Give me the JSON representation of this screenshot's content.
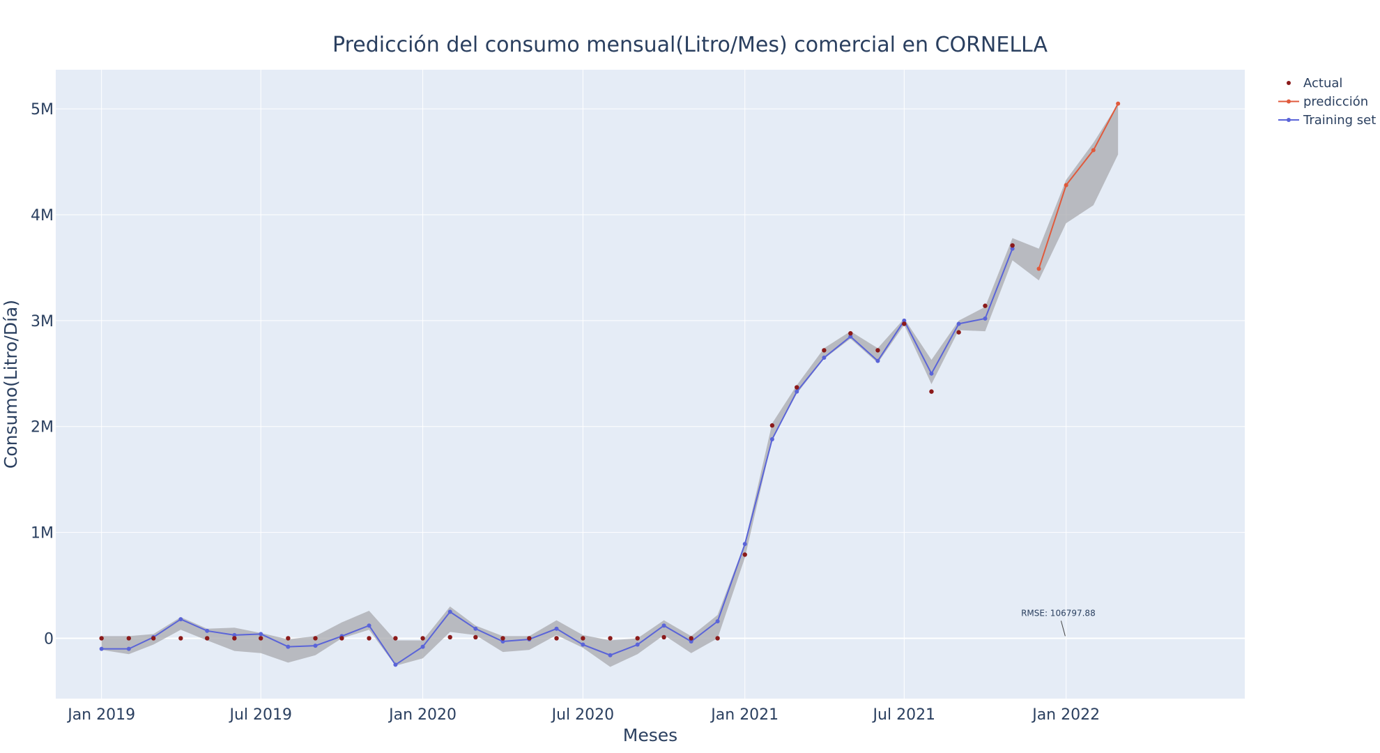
{
  "chart_data": {
    "type": "line",
    "title": "Predicción del consumo mensual(Litro/Mes) comercial en CORNELLA",
    "xlabel": "Meses",
    "ylabel": "Consumo(Litro/Día)",
    "x_ticks": [
      {
        "date": "2019-01-01",
        "label": "Jan 2019"
      },
      {
        "date": "2019-07-01",
        "label": "Jul 2019"
      },
      {
        "date": "2020-01-01",
        "label": "Jan 2020"
      },
      {
        "date": "2020-07-01",
        "label": "Jul 2020"
      },
      {
        "date": "2021-01-01",
        "label": "Jan 2021"
      },
      {
        "date": "2021-07-01",
        "label": "Jul 2021"
      },
      {
        "date": "2022-01-01",
        "label": "Jan 2022"
      }
    ],
    "y_ticks": [
      {
        "value": 0,
        "label": "0"
      },
      {
        "value": 1000000,
        "label": "1M"
      },
      {
        "value": 2000000,
        "label": "2M"
      },
      {
        "value": 3000000,
        "label": "3M"
      },
      {
        "value": 4000000,
        "label": "4M"
      },
      {
        "value": 5000000,
        "label": "5M"
      }
    ],
    "xlim": [
      "2018-11-10",
      "2022-07-23"
    ],
    "ylim": [
      -570000,
      5370000
    ],
    "grid": true,
    "legend_position": "top-right",
    "colors": {
      "plot_bg": "#e5ecf6",
      "grid": "#ffffff",
      "actual": "#8b1a1a",
      "prediction": "#e05a3c",
      "training": "#5a64d8",
      "band": "#a8aaae"
    },
    "series": [
      {
        "name": "Actual",
        "mode": "markers",
        "points": [
          {
            "x": "2019-01-01",
            "y": 0
          },
          {
            "x": "2019-02-01",
            "y": 0
          },
          {
            "x": "2019-03-01",
            "y": 0
          },
          {
            "x": "2019-04-01",
            "y": 0
          },
          {
            "x": "2019-05-01",
            "y": 0
          },
          {
            "x": "2019-06-01",
            "y": 0
          },
          {
            "x": "2019-07-01",
            "y": 0
          },
          {
            "x": "2019-08-01",
            "y": 0
          },
          {
            "x": "2019-09-01",
            "y": 0
          },
          {
            "x": "2019-10-01",
            "y": 0
          },
          {
            "x": "2019-11-01",
            "y": 0
          },
          {
            "x": "2019-12-01",
            "y": 0
          },
          {
            "x": "2020-01-01",
            "y": 0
          },
          {
            "x": "2020-02-01",
            "y": 10000
          },
          {
            "x": "2020-03-01",
            "y": 10000
          },
          {
            "x": "2020-04-01",
            "y": 0
          },
          {
            "x": "2020-05-01",
            "y": 0
          },
          {
            "x": "2020-06-01",
            "y": 0
          },
          {
            "x": "2020-07-01",
            "y": 0
          },
          {
            "x": "2020-08-01",
            "y": 0
          },
          {
            "x": "2020-09-01",
            "y": 0
          },
          {
            "x": "2020-10-01",
            "y": 10000
          },
          {
            "x": "2020-11-01",
            "y": 0
          },
          {
            "x": "2020-12-01",
            "y": 0
          },
          {
            "x": "2021-01-01",
            "y": 790000
          },
          {
            "x": "2021-02-01",
            "y": 2010000
          },
          {
            "x": "2021-03-01",
            "y": 2370000
          },
          {
            "x": "2021-04-01",
            "y": 2720000
          },
          {
            "x": "2021-05-01",
            "y": 2880000
          },
          {
            "x": "2021-06-01",
            "y": 2720000
          },
          {
            "x": "2021-07-01",
            "y": 2970000
          },
          {
            "x": "2021-08-01",
            "y": 2330000
          },
          {
            "x": "2021-09-01",
            "y": 2890000
          },
          {
            "x": "2021-10-01",
            "y": 3140000
          },
          {
            "x": "2021-11-01",
            "y": 3710000
          }
        ]
      },
      {
        "name": "predicción",
        "mode": "lines+markers",
        "points": [
          {
            "x": "2021-12-01",
            "y": 3490000
          },
          {
            "x": "2022-01-01",
            "y": 4280000
          },
          {
            "x": "2022-02-01",
            "y": 4610000
          },
          {
            "x": "2022-03-01",
            "y": 5050000
          }
        ]
      },
      {
        "name": "Training set",
        "mode": "lines+markers",
        "points": [
          {
            "x": "2019-01-01",
            "y": -100000
          },
          {
            "x": "2019-02-01",
            "y": -100000
          },
          {
            "x": "2019-03-01",
            "y": 10000
          },
          {
            "x": "2019-04-01",
            "y": 180000
          },
          {
            "x": "2019-05-01",
            "y": 70000
          },
          {
            "x": "2019-06-01",
            "y": 30000
          },
          {
            "x": "2019-07-01",
            "y": 40000
          },
          {
            "x": "2019-08-01",
            "y": -80000
          },
          {
            "x": "2019-09-01",
            "y": -70000
          },
          {
            "x": "2019-10-01",
            "y": 20000
          },
          {
            "x": "2019-11-01",
            "y": 120000
          },
          {
            "x": "2019-12-01",
            "y": -250000
          },
          {
            "x": "2020-01-01",
            "y": -80000
          },
          {
            "x": "2020-02-01",
            "y": 250000
          },
          {
            "x": "2020-03-01",
            "y": 90000
          },
          {
            "x": "2020-04-01",
            "y": -30000
          },
          {
            "x": "2020-05-01",
            "y": -10000
          },
          {
            "x": "2020-06-01",
            "y": 90000
          },
          {
            "x": "2020-07-01",
            "y": -60000
          },
          {
            "x": "2020-08-01",
            "y": -160000
          },
          {
            "x": "2020-09-01",
            "y": -60000
          },
          {
            "x": "2020-10-01",
            "y": 120000
          },
          {
            "x": "2020-11-01",
            "y": -30000
          },
          {
            "x": "2020-12-01",
            "y": 160000
          },
          {
            "x": "2021-01-01",
            "y": 890000
          },
          {
            "x": "2021-02-01",
            "y": 1880000
          },
          {
            "x": "2021-03-01",
            "y": 2330000
          },
          {
            "x": "2021-04-01",
            "y": 2650000
          },
          {
            "x": "2021-05-01",
            "y": 2850000
          },
          {
            "x": "2021-06-01",
            "y": 2620000
          },
          {
            "x": "2021-07-01",
            "y": 3000000
          },
          {
            "x": "2021-08-01",
            "y": 2500000
          },
          {
            "x": "2021-09-01",
            "y": 2970000
          },
          {
            "x": "2021-10-01",
            "y": 3020000
          },
          {
            "x": "2021-11-01",
            "y": 3680000
          }
        ]
      }
    ],
    "uncertainty_band": [
      {
        "x": "2019-01-01",
        "lower": -110000,
        "upper": 20000
      },
      {
        "x": "2019-02-01",
        "lower": -150000,
        "upper": 20000
      },
      {
        "x": "2019-03-01",
        "lower": -60000,
        "upper": 40000
      },
      {
        "x": "2019-04-01",
        "lower": 80000,
        "upper": 200000
      },
      {
        "x": "2019-05-01",
        "lower": -20000,
        "upper": 90000
      },
      {
        "x": "2019-06-01",
        "lower": -120000,
        "upper": 100000
      },
      {
        "x": "2019-07-01",
        "lower": -140000,
        "upper": 50000
      },
      {
        "x": "2019-08-01",
        "lower": -230000,
        "upper": -10000
      },
      {
        "x": "2019-09-01",
        "lower": -160000,
        "upper": 20000
      },
      {
        "x": "2019-10-01",
        "lower": 0,
        "upper": 150000
      },
      {
        "x": "2019-11-01",
        "lower": 80000,
        "upper": 260000
      },
      {
        "x": "2019-12-01",
        "lower": -260000,
        "upper": -20000
      },
      {
        "x": "2020-01-01",
        "lower": -190000,
        "upper": -20000
      },
      {
        "x": "2020-02-01",
        "lower": 60000,
        "upper": 300000
      },
      {
        "x": "2020-03-01",
        "lower": 30000,
        "upper": 120000
      },
      {
        "x": "2020-04-01",
        "lower": -130000,
        "upper": 20000
      },
      {
        "x": "2020-05-01",
        "lower": -110000,
        "upper": 20000
      },
      {
        "x": "2020-06-01",
        "lower": 30000,
        "upper": 170000
      },
      {
        "x": "2020-07-01",
        "lower": -90000,
        "upper": 30000
      },
      {
        "x": "2020-08-01",
        "lower": -270000,
        "upper": -20000
      },
      {
        "x": "2020-09-01",
        "lower": -150000,
        "upper": 0
      },
      {
        "x": "2020-10-01",
        "lower": 30000,
        "upper": 170000
      },
      {
        "x": "2020-11-01",
        "lower": -140000,
        "upper": 20000
      },
      {
        "x": "2020-12-01",
        "lower": 0,
        "upper": 220000
      },
      {
        "x": "2021-01-01",
        "lower": 760000,
        "upper": 900000
      },
      {
        "x": "2021-02-01",
        "lower": 1880000,
        "upper": 2030000
      },
      {
        "x": "2021-03-01",
        "lower": 2310000,
        "upper": 2390000
      },
      {
        "x": "2021-04-01",
        "lower": 2640000,
        "upper": 2740000
      },
      {
        "x": "2021-05-01",
        "lower": 2830000,
        "upper": 2900000
      },
      {
        "x": "2021-06-01",
        "lower": 2600000,
        "upper": 2740000
      },
      {
        "x": "2021-07-01",
        "lower": 2960000,
        "upper": 3020000
      },
      {
        "x": "2021-08-01",
        "lower": 2400000,
        "upper": 2630000
      },
      {
        "x": "2021-09-01",
        "lower": 2910000,
        "upper": 3000000
      },
      {
        "x": "2021-10-01",
        "lower": 2900000,
        "upper": 3130000
      },
      {
        "x": "2021-11-01",
        "lower": 3570000,
        "upper": 3780000
      },
      {
        "x": "2021-12-01",
        "lower": 3380000,
        "upper": 3680000
      },
      {
        "x": "2022-01-01",
        "lower": 3920000,
        "upper": 4330000
      },
      {
        "x": "2022-02-01",
        "lower": 4090000,
        "upper": 4680000
      },
      {
        "x": "2022-03-01",
        "lower": 4570000,
        "upper": 5050000
      }
    ],
    "annotations": [
      {
        "text": "RMSE: 106797.88",
        "x": "2021-12-31",
        "y": 20000
      }
    ]
  }
}
